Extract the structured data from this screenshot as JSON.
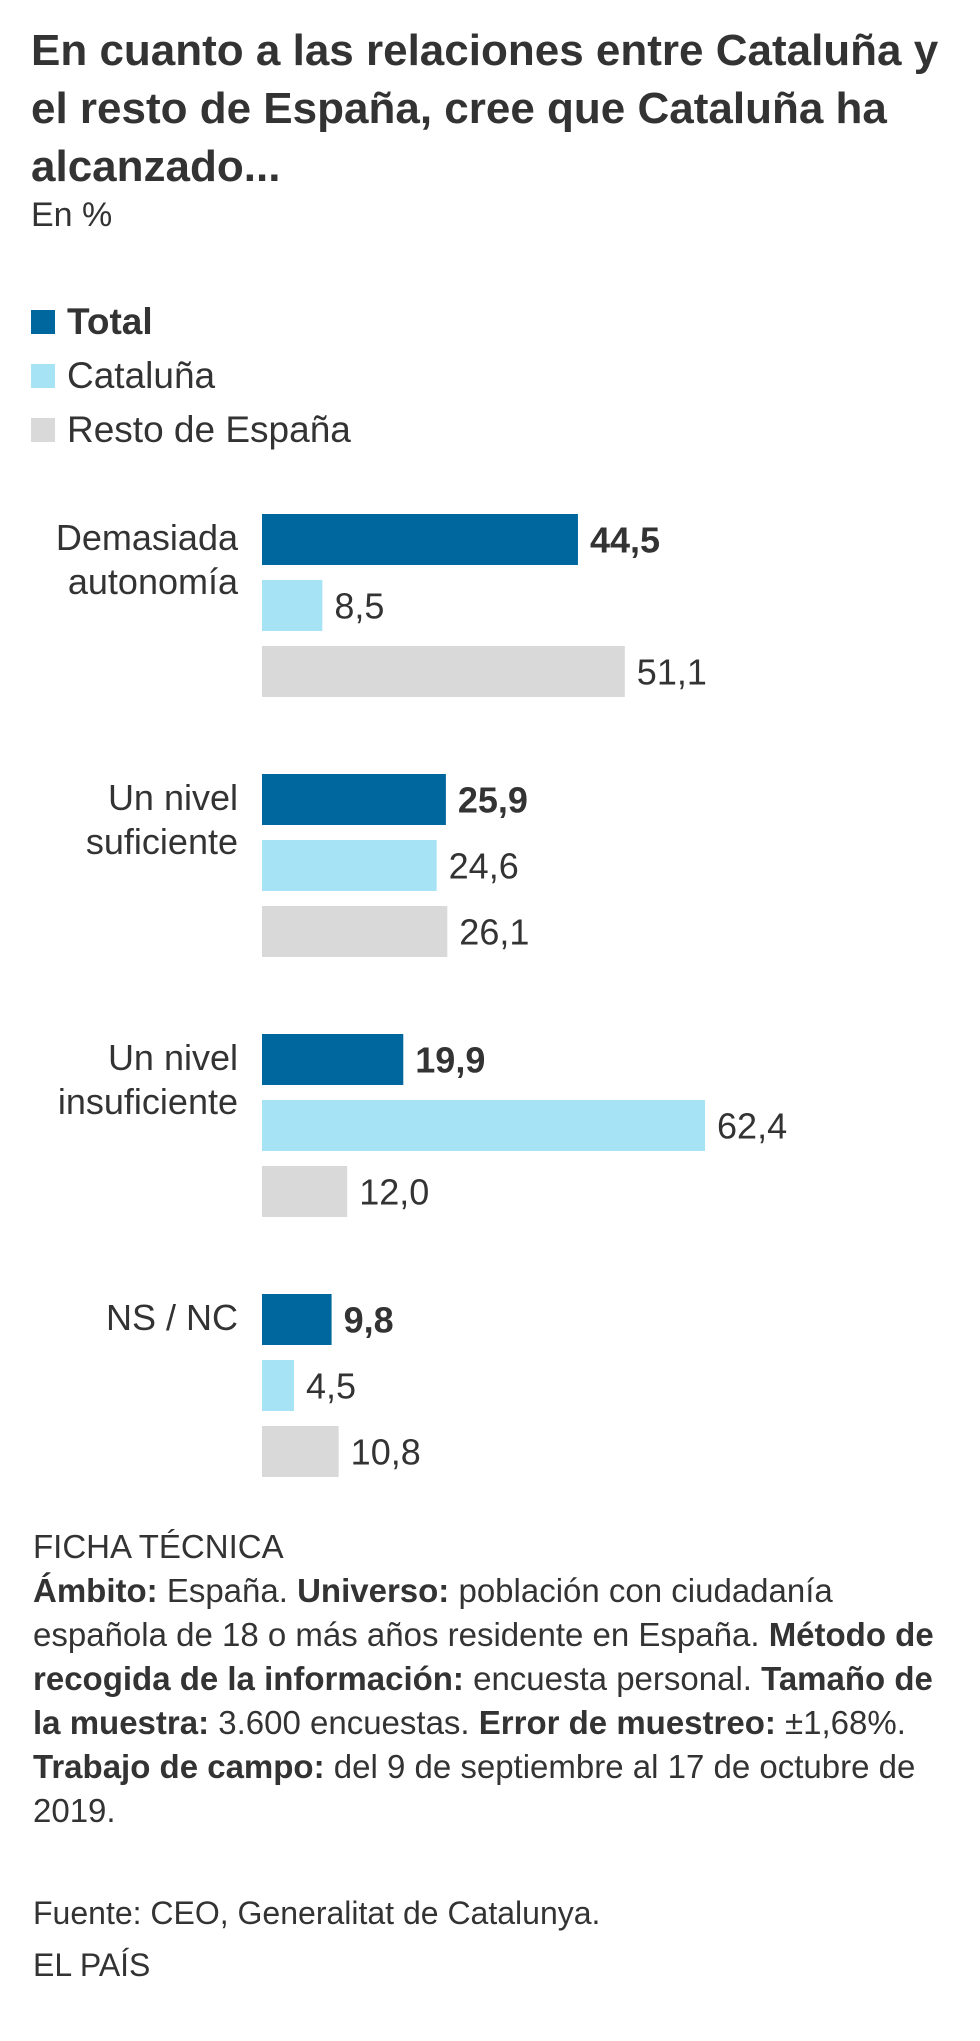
{
  "title": "En cuanto a las relaciones entre Cataluña y el resto de España, cree que Cataluña ha alcanzado...",
  "subtitle": "En %",
  "legend": [
    {
      "label": "Total",
      "color": "#00669e",
      "bold": true
    },
    {
      "label": "Cataluña",
      "color": "#a6e4f5",
      "bold": false
    },
    {
      "label": "Resto de España",
      "color": "#d9d9d9",
      "bold": false
    }
  ],
  "chart_data": {
    "type": "bar",
    "orientation": "horizontal",
    "title": "En cuanto a las relaciones entre Cataluña y el resto de España, cree que Cataluña ha alcanzado...",
    "unit": "En %",
    "categories": [
      [
        "Demasiada",
        "autonomía"
      ],
      [
        "Un nivel",
        "suficiente"
      ],
      [
        "Un nivel",
        "insuficiente"
      ],
      [
        "NS / NC"
      ]
    ],
    "series": [
      {
        "name": "Total",
        "color": "#00669e",
        "values": [
          44.5,
          25.9,
          19.9,
          9.8
        ],
        "labels": [
          "44,5",
          "25,9",
          "19,9",
          "9,8"
        ],
        "bold": true
      },
      {
        "name": "Cataluña",
        "color": "#a6e4f5",
        "values": [
          8.5,
          24.6,
          62.4,
          4.5
        ],
        "labels": [
          "8,5",
          "24,6",
          "62,4",
          "4,5"
        ],
        "bold": false
      },
      {
        "name": "Resto de España",
        "color": "#d9d9d9",
        "values": [
          51.1,
          26.1,
          12.0,
          10.8
        ],
        "labels": [
          "51,1",
          "26,1",
          "12,0",
          "10,8"
        ],
        "bold": false
      }
    ],
    "xlim": [
      0,
      62.4
    ],
    "grid": false,
    "legend_position": "top-left"
  },
  "ficha": {
    "heading": "FICHA TÉCNICA",
    "items": [
      {
        "label": "Ámbito:",
        "text": "España."
      },
      {
        "label": "Universo:",
        "text": "población con ciudadanía española de 18 o más años residente en España."
      },
      {
        "label": "Método de recogida de la información:",
        "text": "encuesta personal."
      },
      {
        "label": "Tamaño de la muestra:",
        "text": "3.600 encuestas."
      },
      {
        "label": "Error de muestreo:",
        "text": "±1,68%."
      },
      {
        "label": "Trabajo de campo:",
        "text": "del 9 de septiembre al 17 de octubre de 2019."
      }
    ]
  },
  "source": "Fuente: CEO, Generalitat de Catalunya.",
  "brand": "EL PAÍS"
}
